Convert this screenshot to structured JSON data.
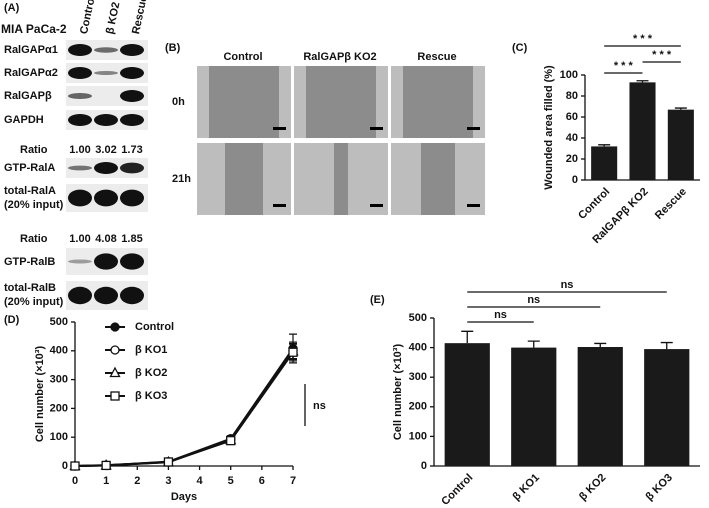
{
  "panel_a": {
    "label": "(A)",
    "cell_line": "MIA PaCa-2",
    "columns": [
      "Control",
      "β KO2",
      "Rescue"
    ],
    "blots": [
      "RalGAPα1",
      "RalGAPα2",
      "RalGAPβ",
      "GAPDH"
    ],
    "rala": {
      "ratio_label": "Ratio",
      "ratios": [
        "1.00",
        "3.02",
        "1.73"
      ],
      "gtp": "GTP-RalA",
      "total": [
        "total-RalA",
        "(20% input)"
      ]
    },
    "ralb": {
      "ratio_label": "Ratio",
      "ratios": [
        "1.00",
        "4.08",
        "1.85"
      ],
      "gtp": "GTP-RalB",
      "total": [
        "total-RalB",
        "(20% input)"
      ]
    }
  },
  "panel_b": {
    "label": "(B)",
    "columns": [
      "Control",
      "RalGAPβ KO2",
      "Rescue"
    ],
    "rows": [
      "0h",
      "21h"
    ]
  },
  "chart_data": [
    {
      "type": "bar",
      "panel_label": "(C)",
      "categories": [
        "Control",
        "RalGAPβ KO2",
        "Rescue"
      ],
      "values": [
        32,
        93,
        67
      ],
      "errors": [
        1.5,
        1.5,
        1.5
      ],
      "color": "#1a1a1a",
      "y_label": "Wounded area filled (%)",
      "ylim": [
        0,
        100
      ],
      "yticks": [
        0,
        20,
        40,
        60,
        80,
        100
      ],
      "annotations": [
        {
          "text": "* * *",
          "between": [
            "Control",
            "RalGAPβ KO2"
          ]
        },
        {
          "text": "* * *",
          "between": [
            "RalGAPβ KO2",
            "Rescue"
          ]
        },
        {
          "text": "* * *",
          "between": [
            "Control",
            "Rescue"
          ]
        }
      ]
    },
    {
      "type": "line",
      "panel_label": "(D)",
      "x": [
        0,
        1,
        3,
        5,
        7
      ],
      "series": [
        {
          "name": "Control",
          "color": "#111111",
          "marker": "filled-circle",
          "values": [
            0,
            2,
            15,
            95,
            408
          ],
          "errors": [
            1,
            2,
            3,
            10,
            50
          ]
        },
        {
          "name": "β KO1",
          "color": "#111111",
          "marker": "open-circle",
          "values": [
            0,
            3,
            14,
            92,
            400
          ],
          "errors": [
            1,
            2,
            3,
            8,
            30
          ]
        },
        {
          "name": "β KO2",
          "color": "#111111",
          "marker": "open-triangle",
          "values": [
            0,
            2,
            13,
            90,
            398
          ],
          "errors": [
            1,
            2,
            3,
            8,
            25
          ]
        },
        {
          "name": "β KO3",
          "color": "#111111",
          "marker": "open-square",
          "values": [
            0,
            2,
            14,
            88,
            395
          ],
          "errors": [
            1,
            2,
            3,
            8,
            30
          ]
        }
      ],
      "x_label": "Days",
      "y_label": "Cell number (×10³)",
      "xlim": [
        0,
        7
      ],
      "xticks": [
        0,
        1,
        2,
        3,
        4,
        5,
        6,
        7
      ],
      "ylim": [
        0,
        500
      ],
      "yticks": [
        0,
        100,
        200,
        300,
        400,
        500
      ],
      "legend": "top-left",
      "annotation": "ns"
    },
    {
      "type": "bar",
      "panel_label": "(E)",
      "categories": [
        "Control",
        "β KO1",
        "β KO2",
        "β KO3"
      ],
      "values": [
        415,
        400,
        402,
        395
      ],
      "errors": [
        40,
        22,
        12,
        22
      ],
      "color": "#1a1a1a",
      "y_label": "Cell number (×10³)",
      "ylim": [
        0,
        500
      ],
      "yticks": [
        0,
        100,
        200,
        300,
        400,
        500
      ],
      "annotations": [
        {
          "text": "ns",
          "between": [
            "Control",
            "β KO1"
          ]
        },
        {
          "text": "ns",
          "between": [
            "Control",
            "β KO2"
          ]
        },
        {
          "text": "ns",
          "between": [
            "Control",
            "β KO3"
          ]
        }
      ]
    }
  ]
}
